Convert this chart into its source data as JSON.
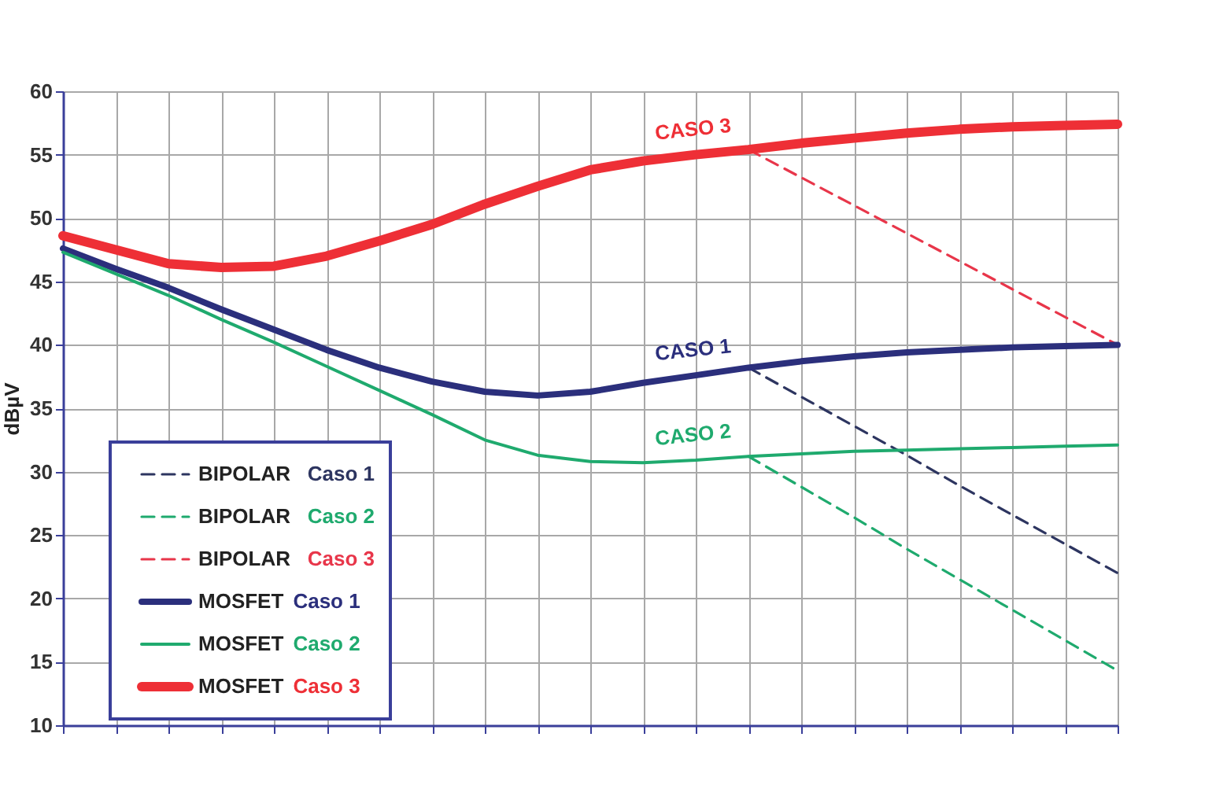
{
  "chart_data": {
    "type": "line",
    "ylabel": "dBµV",
    "categories": [
      null,
      null,
      null,
      null,
      null,
      null,
      null,
      null,
      null,
      null,
      null,
      null,
      null,
      null,
      null,
      null,
      null,
      null,
      null,
      null,
      null
    ],
    "ylim": [
      10,
      60
    ],
    "yticks": [
      10,
      15,
      20,
      25,
      30,
      35,
      40,
      45,
      50,
      55,
      60
    ],
    "grid": true,
    "legend": "bottom left",
    "tick_labels": "y",
    "series": [
      {
        "name": "BIPOLAR Caso 1",
        "color": "#2d3560",
        "line_style": "dashed",
        "values": [
          null,
          null,
          null,
          null,
          null,
          null,
          null,
          null,
          null,
          null,
          null,
          null,
          null,
          38.2,
          35.9,
          33.6,
          31.3,
          28.9,
          26.6,
          24.3,
          22
        ]
      },
      {
        "name": "BIPOLAR Caso 2",
        "color": "#1faa6e",
        "line_style": "dashed",
        "values": [
          null,
          null,
          null,
          null,
          null,
          null,
          null,
          null,
          null,
          null,
          null,
          null,
          null,
          31.2,
          28.8,
          26.4,
          23.9,
          21.5,
          19.1,
          16.7,
          14.3
        ]
      },
      {
        "name": "BIPOLAR Caso 3",
        "color": "#e8364a",
        "line_style": "dashed",
        "values": [
          null,
          null,
          null,
          null,
          null,
          null,
          null,
          null,
          null,
          null,
          null,
          null,
          null,
          55.4,
          53.2,
          51,
          48.8,
          46.6,
          44.4,
          42.2,
          40
        ]
      },
      {
        "name": "MOSFET Caso 1",
        "color": "#2b2f7c",
        "line_style": "solid",
        "values": [
          47.6,
          46,
          44.5,
          42.8,
          41.2,
          39.6,
          38.2,
          37.1,
          36.3,
          36,
          36.3,
          37,
          37.6,
          38.2,
          38.7,
          39.1,
          39.4,
          39.6,
          39.8,
          39.9,
          40
        ]
      },
      {
        "name": "MOSFET Caso 2",
        "color": "#1faa6e",
        "line_style": "solid",
        "values": [
          47.3,
          45.6,
          43.9,
          42,
          40.2,
          38.3,
          36.4,
          34.5,
          32.5,
          31.3,
          30.8,
          30.7,
          30.9,
          31.2,
          31.4,
          31.6,
          31.7,
          31.8,
          31.9,
          32,
          32.1
        ]
      },
      {
        "name": "MOSFET Caso 3",
        "color": "#ee2f36",
        "line_style": "solid",
        "values": [
          48.6,
          47.5,
          46.4,
          46.1,
          46.2,
          47,
          48.2,
          49.5,
          51.1,
          52.5,
          53.8,
          54.5,
          55,
          55.4,
          55.9,
          56.3,
          56.7,
          57,
          57.2,
          57.3,
          57.4
        ]
      }
    ],
    "annotations": [
      "CASO 3",
      "CASO 1",
      "CASO 2"
    ]
  }
}
